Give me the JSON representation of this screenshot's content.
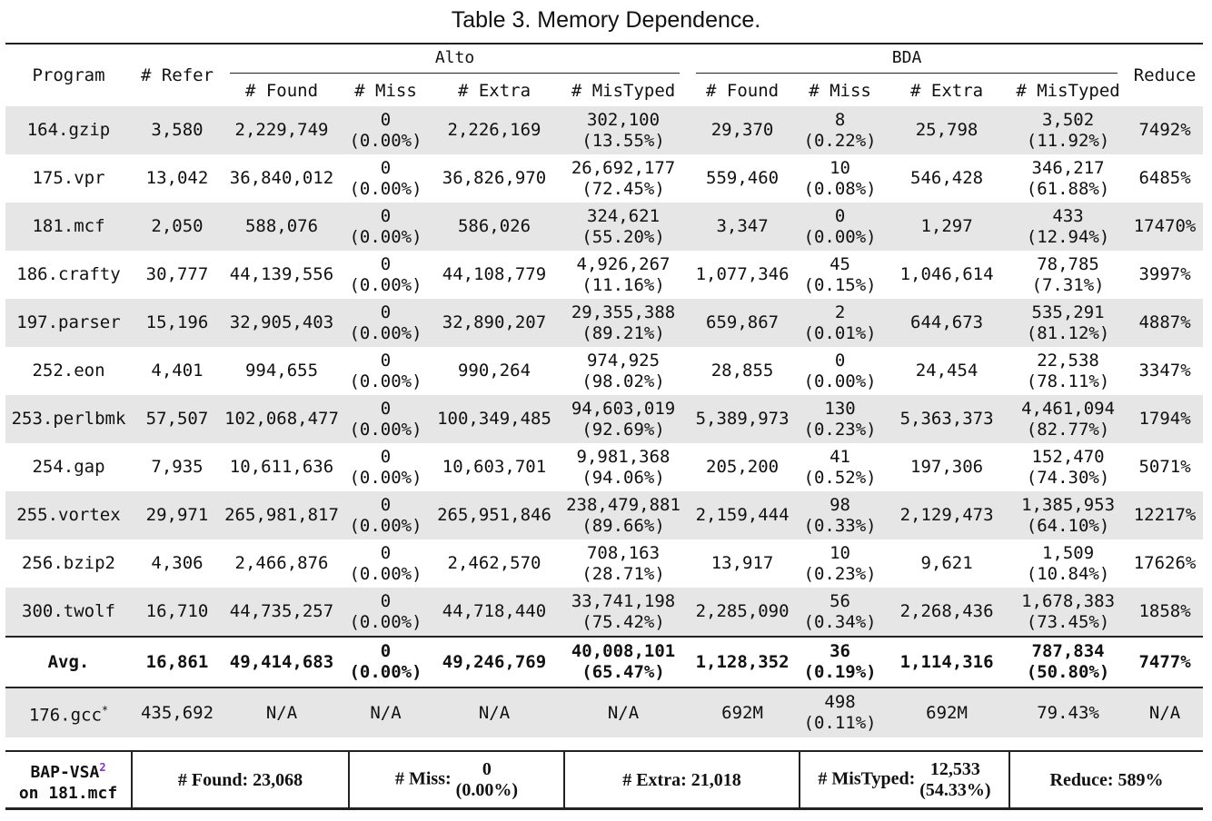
{
  "caption": "Table 3.  Memory Dependence.",
  "header": {
    "program": "Program",
    "refer": "# Refer",
    "alto": "Alto",
    "bda": "BDA",
    "reduce": "Reduce",
    "sub": [
      "# Found",
      "# Miss",
      "# Extra",
      "# MisTyped",
      "# Found",
      "# Miss",
      "# Extra",
      "# MisTyped"
    ]
  },
  "rows": [
    {
      "program": "164.gzip",
      "refer": "3,580",
      "alto_found": "2,229,749",
      "alto_miss": "0",
      "alto_miss_pct": "(0.00%)",
      "alto_extra": "2,226,169",
      "alto_mistyped": "302,100",
      "alto_mistyped_pct": "(13.55%)",
      "bda_found": "29,370",
      "bda_miss": "8",
      "bda_miss_pct": "(0.22%)",
      "bda_extra": "25,798",
      "bda_mistyped": "3,502",
      "bda_mistyped_pct": "(11.92%)",
      "reduce": "7492%"
    },
    {
      "program": "175.vpr",
      "refer": "13,042",
      "alto_found": "36,840,012",
      "alto_miss": "0",
      "alto_miss_pct": "(0.00%)",
      "alto_extra": "36,826,970",
      "alto_mistyped": "26,692,177",
      "alto_mistyped_pct": "(72.45%)",
      "bda_found": "559,460",
      "bda_miss": "10",
      "bda_miss_pct": "(0.08%)",
      "bda_extra": "546,428",
      "bda_mistyped": "346,217",
      "bda_mistyped_pct": "(61.88%)",
      "reduce": "6485%"
    },
    {
      "program": "181.mcf",
      "refer": "2,050",
      "alto_found": "588,076",
      "alto_miss": "0",
      "alto_miss_pct": "(0.00%)",
      "alto_extra": "586,026",
      "alto_mistyped": "324,621",
      "alto_mistyped_pct": "(55.20%)",
      "bda_found": "3,347",
      "bda_miss": "0",
      "bda_miss_pct": "(0.00%)",
      "bda_extra": "1,297",
      "bda_mistyped": "433",
      "bda_mistyped_pct": "(12.94%)",
      "reduce": "17470%"
    },
    {
      "program": "186.crafty",
      "refer": "30,777",
      "alto_found": "44,139,556",
      "alto_miss": "0",
      "alto_miss_pct": "(0.00%)",
      "alto_extra": "44,108,779",
      "alto_mistyped": "4,926,267",
      "alto_mistyped_pct": "(11.16%)",
      "bda_found": "1,077,346",
      "bda_miss": "45",
      "bda_miss_pct": "(0.15%)",
      "bda_extra": "1,046,614",
      "bda_mistyped": "78,785",
      "bda_mistyped_pct": "(7.31%)",
      "reduce": "3997%"
    },
    {
      "program": "197.parser",
      "refer": "15,196",
      "alto_found": "32,905,403",
      "alto_miss": "0",
      "alto_miss_pct": "(0.00%)",
      "alto_extra": "32,890,207",
      "alto_mistyped": "29,355,388",
      "alto_mistyped_pct": "(89.21%)",
      "bda_found": "659,867",
      "bda_miss": "2",
      "bda_miss_pct": "(0.01%)",
      "bda_extra": "644,673",
      "bda_mistyped": "535,291",
      "bda_mistyped_pct": "(81.12%)",
      "reduce": "4887%"
    },
    {
      "program": "252.eon",
      "refer": "4,401",
      "alto_found": "994,655",
      "alto_miss": "0",
      "alto_miss_pct": "(0.00%)",
      "alto_extra": "990,264",
      "alto_mistyped": "974,925",
      "alto_mistyped_pct": "(98.02%)",
      "bda_found": "28,855",
      "bda_miss": "0",
      "bda_miss_pct": "(0.00%)",
      "bda_extra": "24,454",
      "bda_mistyped": "22,538",
      "bda_mistyped_pct": "(78.11%)",
      "reduce": "3347%"
    },
    {
      "program": "253.perlbmk",
      "refer": "57,507",
      "alto_found": "102,068,477",
      "alto_miss": "0",
      "alto_miss_pct": "(0.00%)",
      "alto_extra": "100,349,485",
      "alto_mistyped": "94,603,019",
      "alto_mistyped_pct": "(92.69%)",
      "bda_found": "5,389,973",
      "bda_miss": "130",
      "bda_miss_pct": "(0.23%)",
      "bda_extra": "5,363,373",
      "bda_mistyped": "4,461,094",
      "bda_mistyped_pct": "(82.77%)",
      "reduce": "1794%"
    },
    {
      "program": "254.gap",
      "refer": "7,935",
      "alto_found": "10,611,636",
      "alto_miss": "0",
      "alto_miss_pct": "(0.00%)",
      "alto_extra": "10,603,701",
      "alto_mistyped": "9,981,368",
      "alto_mistyped_pct": "(94.06%)",
      "bda_found": "205,200",
      "bda_miss": "41",
      "bda_miss_pct": "(0.52%)",
      "bda_extra": "197,306",
      "bda_mistyped": "152,470",
      "bda_mistyped_pct": "(74.30%)",
      "reduce": "5071%"
    },
    {
      "program": "255.vortex",
      "refer": "29,971",
      "alto_found": "265,981,817",
      "alto_miss": "0",
      "alto_miss_pct": "(0.00%)",
      "alto_extra": "265,951,846",
      "alto_mistyped": "238,479,881",
      "alto_mistyped_pct": "(89.66%)",
      "bda_found": "2,159,444",
      "bda_miss": "98",
      "bda_miss_pct": "(0.33%)",
      "bda_extra": "2,129,473",
      "bda_mistyped": "1,385,953",
      "bda_mistyped_pct": "(64.10%)",
      "reduce": "12217%"
    },
    {
      "program": "256.bzip2",
      "refer": "4,306",
      "alto_found": "2,466,876",
      "alto_miss": "0",
      "alto_miss_pct": "(0.00%)",
      "alto_extra": "2,462,570",
      "alto_mistyped": "708,163",
      "alto_mistyped_pct": "(28.71%)",
      "bda_found": "13,917",
      "bda_miss": "10",
      "bda_miss_pct": "(0.23%)",
      "bda_extra": "9,621",
      "bda_mistyped": "1,509",
      "bda_mistyped_pct": "(10.84%)",
      "reduce": "17626%"
    },
    {
      "program": "300.twolf",
      "refer": "16,710",
      "alto_found": "44,735,257",
      "alto_miss": "0",
      "alto_miss_pct": "(0.00%)",
      "alto_extra": "44,718,440",
      "alto_mistyped": "33,741,198",
      "alto_mistyped_pct": "(75.42%)",
      "bda_found": "2,285,090",
      "bda_miss": "56",
      "bda_miss_pct": "(0.34%)",
      "bda_extra": "2,268,436",
      "bda_mistyped": "1,678,383",
      "bda_mistyped_pct": "(73.45%)",
      "reduce": "1858%"
    }
  ],
  "avg": {
    "program": "Avg.",
    "refer": "16,861",
    "alto_found": "49,414,683",
    "alto_miss": "0",
    "alto_miss_pct": "(0.00%)",
    "alto_extra": "49,246,769",
    "alto_mistyped": "40,008,101",
    "alto_mistyped_pct": "(65.47%)",
    "bda_found": "1,128,352",
    "bda_miss": "36",
    "bda_miss_pct": "(0.19%)",
    "bda_extra": "1,114,316",
    "bda_mistyped": "787,834",
    "bda_mistyped_pct": "(50.80%)",
    "reduce": "7477%"
  },
  "gcc": {
    "program": "176.gcc",
    "program_mark": "*",
    "refer": "435,692",
    "alto_found": "N/A",
    "alto_miss": "N/A",
    "alto_extra": "N/A",
    "alto_mistyped": "N/A",
    "bda_found": "692M",
    "bda_miss": "498",
    "bda_miss_pct": "(0.11%)",
    "bda_extra": "692M",
    "bda_mistyped": "79.43%",
    "reduce": "N/A"
  },
  "bap": {
    "label_1": "BAP-VSA",
    "label_sup": "2",
    "label_2": "on 181.mcf",
    "found": "# Found: 23,068",
    "miss_label": "# Miss:",
    "miss_value": "0",
    "miss_pct": "(0.00%)",
    "extra": "# Extra: 21,018",
    "mistyped_label": "# MisTyped:",
    "mistyped_value": "12,533",
    "mistyped_pct": "(54.33%)",
    "reduce": "Reduce: 589%"
  }
}
